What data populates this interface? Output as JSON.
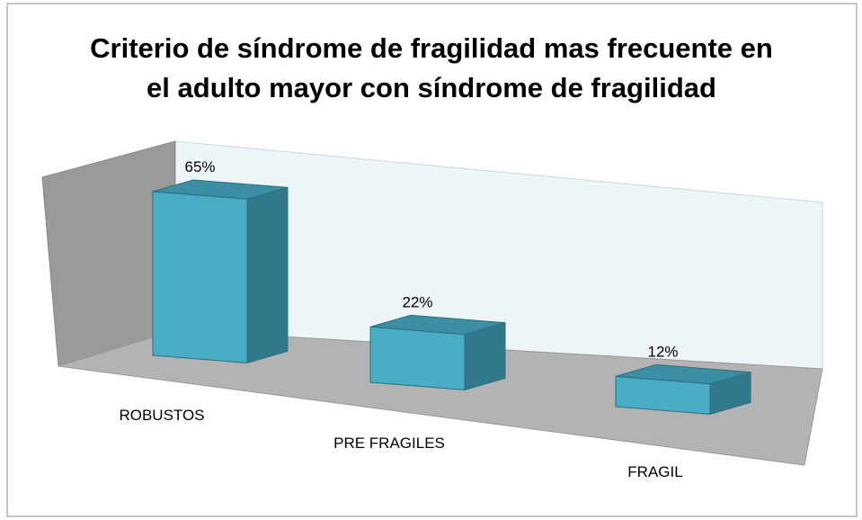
{
  "chart_data": {
    "type": "bar3d",
    "title": "Criterio de síndrome de fragilidad mas frecuente en el adulto mayor con síndrome de fragilidad",
    "categories": [
      "ROBUSTOS",
      "PRE FRAGILES",
      "FRAGIL"
    ],
    "values": [
      65,
      22,
      12
    ],
    "value_labels": [
      "65%",
      "22%",
      "12%"
    ],
    "color": "#4bacc6"
  }
}
